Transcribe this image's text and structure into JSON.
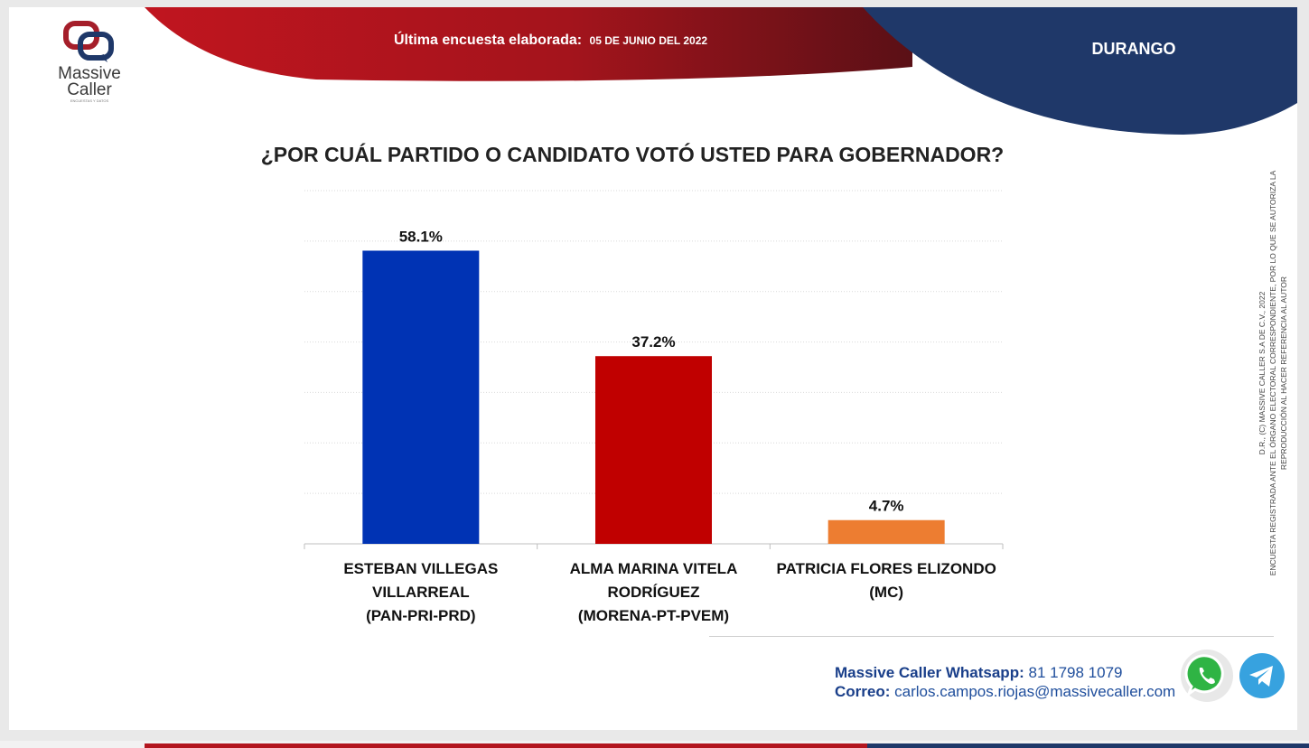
{
  "brand": {
    "name_line1": "Massive",
    "name_line2": "Caller",
    "tagline": "ENCUESTAS Y DATOS",
    "colors": {
      "red": "#c0151f",
      "navy": "#1f3869"
    }
  },
  "header": {
    "survey_label": "Última encuesta elaborada:",
    "survey_date": "05 DE JUNIO DEL 2022",
    "region": "DURANGO"
  },
  "chart_data": {
    "type": "bar",
    "title": "¿POR CUÁL PARTIDO O CANDIDATO VOTÓ USTED PARA GOBERNADOR?",
    "categories": [
      [
        "ESTEBAN VILLEGAS",
        "VILLARREAL",
        "(PAN-PRI-PRD)"
      ],
      [
        "ALMA MARINA VITELA",
        "RODRÍGUEZ",
        "(MORENA-PT-PVEM)"
      ],
      [
        "PATRICIA FLORES ELIZONDO",
        "(MC)"
      ]
    ],
    "values": [
      58.1,
      37.2,
      4.7
    ],
    "value_labels": [
      "58.1%",
      "37.2%",
      "4.7%"
    ],
    "colors": [
      "#0033b4",
      "#c00000",
      "#ed7d31"
    ],
    "ylim": [
      0,
      70
    ],
    "grid": true,
    "xlabel": "",
    "ylabel": ""
  },
  "copyright_note": {
    "line1": "D.R., (C) MASSIVE CALLER S.A DE C.V., 2022",
    "line2": "ENCUESTA REGISTRADA ANTE EL ÓRGANO ELECTORAL CORRESPONDIENTE, POR LO QUE SE AUTORIZA LA REPRODUCCIÓN AL HACER REFERENCIA AL AUTOR"
  },
  "contact": {
    "whatsapp_label": "Massive Caller Whatsapp:",
    "whatsapp_number": "81 1798 1079",
    "email_label": "Correo:",
    "email": "carlos.campos.riojas@massivecaller.com"
  },
  "icons": [
    "massive-caller-logo",
    "whatsapp-icon",
    "telegram-icon"
  ]
}
